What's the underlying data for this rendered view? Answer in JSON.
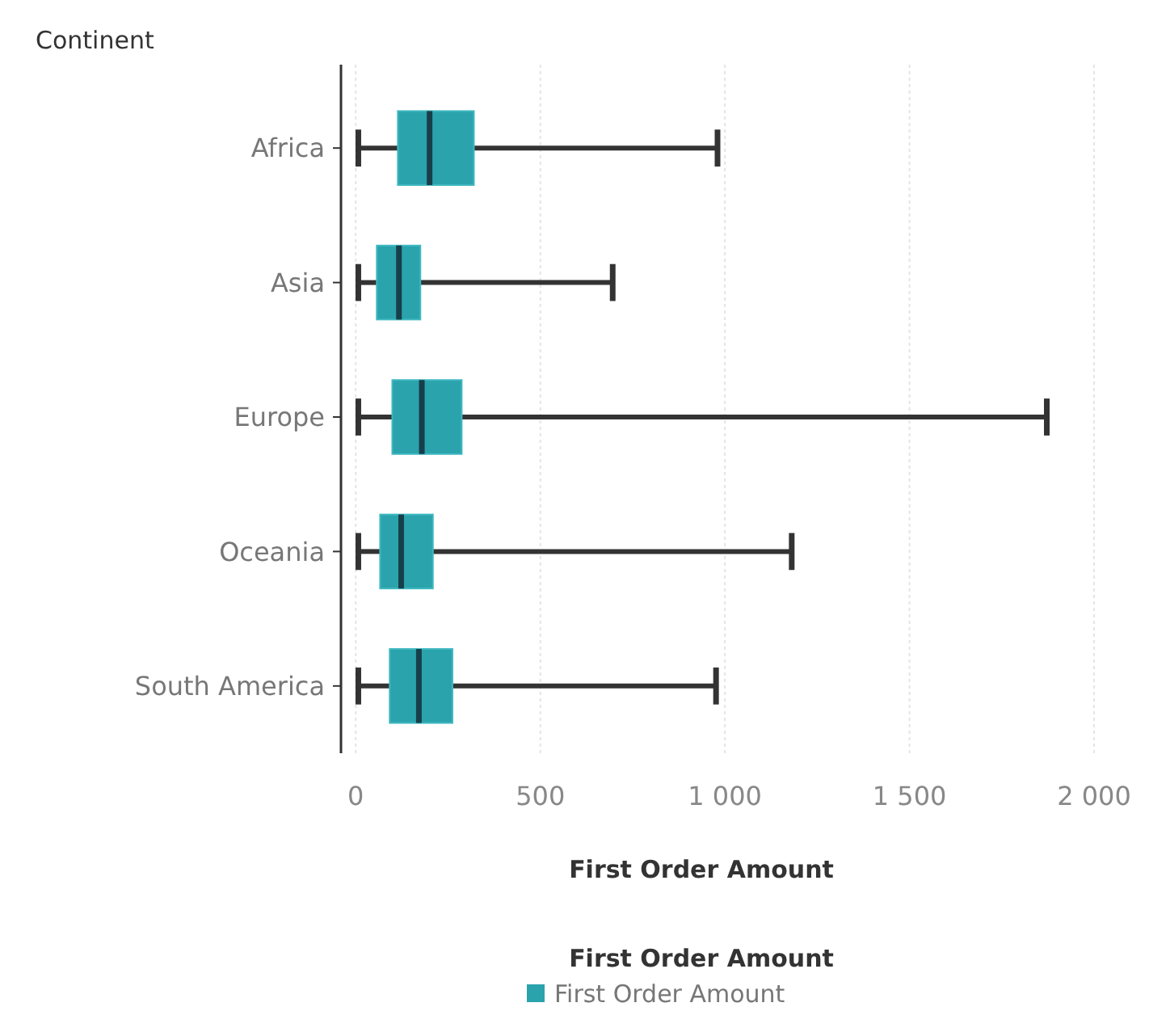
{
  "chart_data": {
    "type": "box",
    "orientation": "horizontal",
    "ylabel": "Continent",
    "xlabel": "First Order Amount",
    "legend_title": "First Order Amount",
    "categories": [
      "Africa",
      "Asia",
      "Europe",
      "Oceania",
      "South America"
    ],
    "series": [
      {
        "name": "First Order Amount",
        "color": "#2aa3ad",
        "boxes": [
          {
            "low": 7,
            "q1": 114,
            "median": 200,
            "q3": 320,
            "high": 980
          },
          {
            "low": 7,
            "q1": 57,
            "median": 117,
            "q3": 175,
            "high": 696
          },
          {
            "low": 7,
            "q1": 99,
            "median": 179,
            "q3": 287,
            "high": 1872
          },
          {
            "low": 7,
            "q1": 66,
            "median": 123,
            "q3": 209,
            "high": 1181
          },
          {
            "low": 7,
            "q1": 92,
            "median": 171,
            "q3": 262,
            "high": 976
          }
        ]
      }
    ],
    "xlim": [
      -40,
      2000
    ],
    "xticks": [
      0,
      500,
      {
        "value": 1000,
        "label": "1 000"
      },
      {
        "value": 1500,
        "label": "1 500"
      },
      {
        "value": 2000,
        "label": "2 000"
      }
    ],
    "grid": "x",
    "legend": "bottom"
  }
}
